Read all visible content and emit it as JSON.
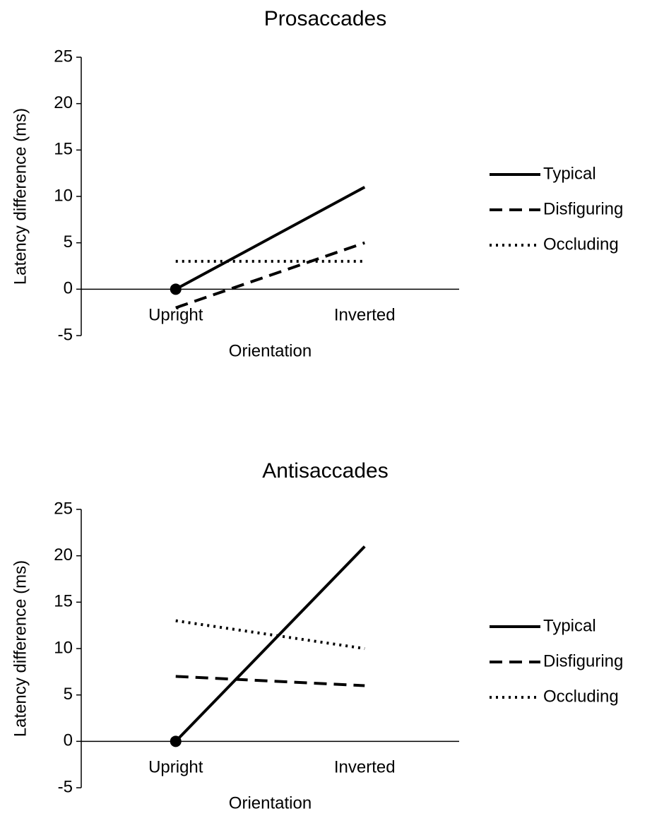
{
  "chart_data": [
    {
      "type": "line",
      "title": "Prosaccades",
      "x_label": "Orientation",
      "y_label": "Latency difference (ms)",
      "categories": [
        "Upright",
        "Inverted"
      ],
      "series": [
        {
          "name": "Typical",
          "color": "#000000",
          "dash": "solid",
          "values": [
            0,
            11
          ]
        },
        {
          "name": "Disfiguring",
          "color": "#000000",
          "dash": "dashed",
          "values": [
            -2,
            5
          ]
        },
        {
          "name": "Occluding",
          "color": "#000000",
          "dash": "dotted",
          "values": [
            3,
            3
          ]
        }
      ],
      "ylim": [
        -5,
        25
      ],
      "yticks": [
        -5,
        0,
        5,
        10,
        15,
        20,
        25
      ],
      "legend": "right"
    },
    {
      "type": "line",
      "title": "Antisaccades",
      "x_label": "Orientation",
      "y_label": "Latency difference (ms)",
      "categories": [
        "Upright",
        "Inverted"
      ],
      "series": [
        {
          "name": "Typical",
          "color": "#000000",
          "dash": "solid",
          "values": [
            0,
            21
          ]
        },
        {
          "name": "Disfiguring",
          "color": "#000000",
          "dash": "dashed",
          "values": [
            7,
            6
          ]
        },
        {
          "name": "Occluding",
          "color": "#000000",
          "dash": "dotted",
          "values": [
            13,
            10
          ]
        }
      ],
      "ylim": [
        -5,
        25
      ],
      "yticks": [
        -5,
        0,
        5,
        10,
        15,
        20,
        25
      ],
      "legend": "right"
    }
  ]
}
